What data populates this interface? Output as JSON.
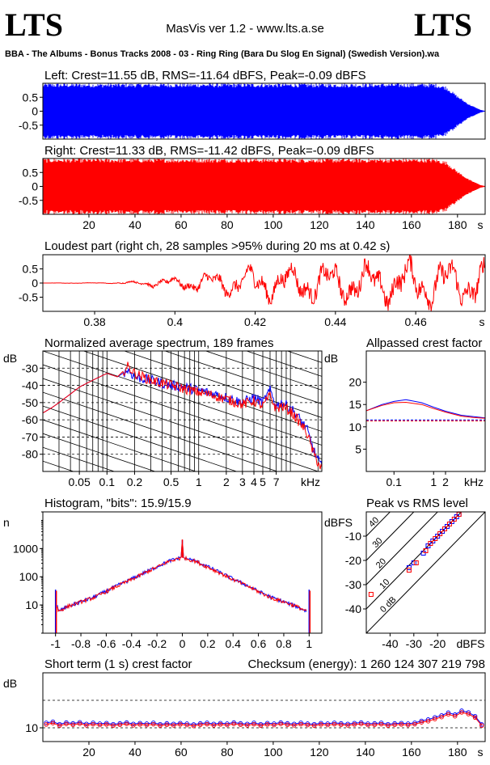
{
  "header": {
    "logo_left": "LTS",
    "logo_right": "LTS",
    "app_version": "MasVis ver 1.2 - www.lts.a.se",
    "file_name": "BBA - The Albums - Bonus Tracks 2008 - 03 - Ring Ring (Bara Du Slog En Signal) (Swedish Version).wa"
  },
  "colors": {
    "left": "#0000ff",
    "right": "#ff0000",
    "axis": "#000000",
    "background": "#ffffff"
  },
  "chart_data": [
    {
      "id": "left-waveform",
      "type": "area",
      "title": "Left: Crest=11.55 dB, RMS=-11.64 dBFS, Peak=-0.09 dBFS",
      "y_ticks": [
        "0.5",
        "0",
        "-0.5"
      ],
      "ylim": [
        -1,
        1
      ],
      "xlim": [
        0,
        192
      ],
      "x_ticks": [],
      "x_unit": "",
      "envelope": {
        "x": [
          0,
          5,
          10,
          60,
          120,
          170,
          175,
          180,
          185,
          190,
          192
        ],
        "peak": [
          1,
          1,
          1,
          1,
          1,
          1,
          0.9,
          0.55,
          0.25,
          0.05,
          0.01
        ]
      },
      "series": [
        {
          "name": "left",
          "color": "#0000ff"
        }
      ]
    },
    {
      "id": "right-waveform",
      "type": "area",
      "title": "Right: Crest=11.33 dB, RMS=-11.42 dBFS, Peak=-0.09 dBFS",
      "y_ticks": [
        "0.5",
        "0",
        "-0.5"
      ],
      "ylim": [
        -1,
        1
      ],
      "xlim": [
        0,
        192
      ],
      "x_ticks": [
        "20",
        "40",
        "60",
        "80",
        "100",
        "120",
        "140",
        "160",
        "180"
      ],
      "x_unit": "s",
      "envelope": {
        "x": [
          0,
          5,
          10,
          60,
          120,
          170,
          175,
          180,
          185,
          190,
          192
        ],
        "peak": [
          1,
          1,
          1,
          1,
          1,
          1,
          0.9,
          0.55,
          0.25,
          0.05,
          0.01
        ]
      },
      "series": [
        {
          "name": "right",
          "color": "#ff0000"
        }
      ]
    },
    {
      "id": "loudest-part",
      "type": "line",
      "title": "Loudest part (right ch, 28 samples >95% during 20 ms at 0.42 s)",
      "y_ticks": [
        "0.5",
        "0",
        "-0.5"
      ],
      "ylim": [
        -1,
        1
      ],
      "xlim": [
        0.3671,
        0.4773
      ],
      "x_ticks": [
        "0.38",
        "0.4",
        "0.42",
        "0.44",
        "0.46"
      ],
      "x_unit": "s",
      "amplitude_envelope": {
        "x": [
          0.367,
          0.385,
          0.39,
          0.4,
          0.41,
          0.42,
          0.44,
          0.46,
          0.477
        ],
        "amp": [
          0,
          0.02,
          0.08,
          0.25,
          0.45,
          0.7,
          0.8,
          0.95,
          0.9
        ]
      },
      "series": [
        {
          "name": "right",
          "color": "#ff0000"
        }
      ]
    },
    {
      "id": "average-spectrum",
      "type": "line",
      "title": "Normalized average spectrum, 189 frames",
      "ylabel": "dB",
      "y_ticks": [
        "-30",
        "-40",
        "-50",
        "-60",
        "-70",
        "-80"
      ],
      "ylim": [
        -90,
        -20
      ],
      "x_scale": "log",
      "xlim": [
        0.02,
        22
      ],
      "x_ticks": [
        "0.05",
        "0.1",
        "0.2",
        "0.5",
        "1",
        "2",
        "3",
        "4",
        "5",
        "7"
      ],
      "x_tick_values": [
        0.05,
        0.1,
        0.2,
        0.5,
        1,
        2,
        3,
        4,
        5,
        7
      ],
      "x_unit": "kHz",
      "x": [
        0.02,
        0.025,
        0.03,
        0.04,
        0.05,
        0.07,
        0.1,
        0.13,
        0.17,
        0.2,
        0.3,
        0.5,
        0.7,
        1,
        1.5,
        2,
        3,
        4,
        5,
        6,
        7,
        8,
        10,
        12,
        15,
        18,
        22
      ],
      "series": [
        {
          "name": "left",
          "color": "#0000ff",
          "values": [
            -56,
            -53,
            -50,
            -45,
            -41,
            -37,
            -33,
            -35,
            -31,
            -35,
            -37,
            -40,
            -41,
            -43,
            -45,
            -47,
            -50,
            -47,
            -50,
            -43,
            -52,
            -50,
            -53,
            -58,
            -65,
            -78,
            -88
          ]
        },
        {
          "name": "right",
          "color": "#ff0000",
          "values": [
            -56,
            -53,
            -50,
            -45,
            -41,
            -37,
            -33,
            -35,
            -29,
            -33,
            -37,
            -40,
            -42,
            -44,
            -46,
            -48,
            -51,
            -49,
            -52,
            -46,
            -54,
            -52,
            -55,
            -60,
            -67,
            -80,
            -89
          ]
        }
      ]
    },
    {
      "id": "allpassed-crest",
      "type": "line",
      "title": "Allpassed crest factor",
      "ylabel": "dB",
      "y_ticks": [
        "20",
        "15",
        "10",
        "5"
      ],
      "y_tick_values": [
        20,
        15,
        10,
        5
      ],
      "ylim": [
        0,
        27
      ],
      "x_scale": "log",
      "xlim": [
        0.02,
        20
      ],
      "x_ticks": [
        "0.1",
        "1",
        "2"
      ],
      "x_tick_values": [
        0.1,
        1,
        2
      ],
      "x_unit": "kHz",
      "x": [
        0.02,
        0.05,
        0.1,
        0.2,
        0.5,
        1,
        2,
        5,
        10,
        20
      ],
      "reference_crest": {
        "left": 11.55,
        "right": 11.33
      },
      "series": [
        {
          "name": "left",
          "color": "#0000ff",
          "values": [
            13.6,
            15.0,
            15.7,
            16.1,
            15.4,
            14.4,
            13.5,
            12.6,
            12.3,
            12.0
          ]
        },
        {
          "name": "right",
          "color": "#ff0000",
          "values": [
            13.6,
            14.8,
            15.4,
            15.5,
            15.0,
            14.1,
            13.3,
            12.4,
            12.1,
            11.9
          ]
        }
      ]
    },
    {
      "id": "histogram",
      "type": "line",
      "title": "Histogram, \"bits\": 15.9/15.9",
      "ylabel": "n",
      "y_scale": "log",
      "y_ticks": [
        "1000",
        "100",
        "10"
      ],
      "y_tick_values": [
        1000,
        100,
        10
      ],
      "ylim": [
        1,
        20000
      ],
      "xlim": [
        -1.1,
        1.1
      ],
      "x_ticks": [
        "-1",
        "-0.8",
        "-0.6",
        "-0.4",
        "-0.2",
        "0",
        "0.2",
        "0.4",
        "0.6",
        "0.8",
        "1"
      ],
      "x_tick_values": [
        -1,
        -0.8,
        -0.6,
        -0.4,
        -0.2,
        0,
        0.2,
        0.4,
        0.6,
        0.8,
        1
      ],
      "x": [
        -1,
        -0.98,
        -0.9,
        -0.8,
        -0.7,
        -0.6,
        -0.5,
        -0.4,
        -0.3,
        -0.2,
        -0.1,
        -0.01,
        0,
        0.01,
        0.1,
        0.2,
        0.3,
        0.4,
        0.5,
        0.6,
        0.7,
        0.8,
        0.9,
        0.98,
        1
      ],
      "series": [
        {
          "name": "left",
          "color": "#0000ff",
          "values": [
            35,
            6,
            9,
            13,
            19,
            31,
            52,
            84,
            140,
            230,
            370,
            480,
            2000,
            480,
            370,
            230,
            140,
            84,
            52,
            31,
            19,
            13,
            9,
            6,
            35
          ]
        },
        {
          "name": "right",
          "color": "#ff0000",
          "values": [
            32,
            6,
            9,
            13,
            18,
            30,
            50,
            80,
            135,
            220,
            360,
            470,
            2100,
            470,
            360,
            220,
            135,
            80,
            50,
            30,
            18,
            13,
            9,
            6,
            32
          ]
        }
      ]
    },
    {
      "id": "peak-vs-rms",
      "type": "scatter",
      "title": "Peak vs RMS level",
      "ylabel": "dBFS",
      "xlabel": "dBFS",
      "y_ticks": [
        "-10",
        "-20",
        "-30",
        "-40"
      ],
      "y_tick_values": [
        -10,
        -20,
        -30,
        -40
      ],
      "x_ticks": [
        "-40",
        "-30",
        "-20"
      ],
      "x_tick_values": [
        -40,
        -30,
        -20
      ],
      "xlim": [
        -50,
        0
      ],
      "ylim": [
        -50,
        0
      ],
      "crest_lines": [
        "0 dB",
        "10",
        "20",
        "30",
        "40"
      ],
      "crest_line_values": [
        0,
        10,
        20,
        30,
        40
      ],
      "series": [
        {
          "name": "left",
          "color": "#0000ff",
          "points": [
            [
              -32,
              -23
            ],
            [
              -30,
              -21
            ],
            [
              -26,
              -17
            ],
            [
              -24,
              -14
            ],
            [
              -22,
              -12
            ],
            [
              -20,
              -10
            ],
            [
              -18,
              -8
            ],
            [
              -16,
              -6
            ],
            [
              -14,
              -4
            ],
            [
              -12,
              -2
            ],
            [
              -11,
              -1
            ]
          ]
        },
        {
          "name": "right",
          "color": "#ff0000",
          "points": [
            [
              -48,
              -34
            ],
            [
              -32,
              -24
            ],
            [
              -29,
              -21
            ],
            [
              -25,
              -16
            ],
            [
              -23,
              -13
            ],
            [
              -21,
              -11
            ],
            [
              -19,
              -9
            ],
            [
              -17,
              -7
            ],
            [
              -15,
              -5
            ],
            [
              -13,
              -3
            ],
            [
              -11,
              -1
            ]
          ]
        }
      ]
    },
    {
      "id": "short-term-crest",
      "type": "line",
      "title": "Short term (1 s) crest factor",
      "annotation": "Checksum (energy):  1 260 124 307 219 798",
      "ylabel": "dB",
      "y_ticks": [
        "10"
      ],
      "y_tick_values": [
        10
      ],
      "ylim": [
        5,
        30
      ],
      "reference_lines": [
        10,
        20
      ],
      "xlim": [
        0,
        192
      ],
      "x_ticks": [
        "20",
        "40",
        "60",
        "80",
        "100",
        "120",
        "140",
        "160",
        "180"
      ],
      "x_tick_values": [
        20,
        40,
        60,
        80,
        100,
        120,
        140,
        160,
        180
      ],
      "x_unit": "s",
      "series": [
        {
          "name": "left",
          "color": "#0000ff",
          "values": [
            11.8,
            12.2,
            11.3,
            11.9,
            11.6,
            12.0,
            11.4,
            11.8,
            11.5,
            11.7,
            11.3,
            11.6,
            11.9,
            11.4,
            11.7,
            11.5,
            11.8,
            11.3,
            11.6,
            11.4,
            11.7,
            11.5,
            11.2,
            11.6,
            11.8,
            11.4,
            11.7,
            11.5,
            11.9,
            11.6,
            11.4,
            11.8,
            11.3,
            11.7,
            11.5,
            11.9,
            11.6,
            11.4,
            11.8,
            11.5,
            11.3,
            11.7,
            11.5,
            11.8,
            11.6,
            11.4,
            11.7,
            11.9,
            11.5,
            11.6,
            11.8,
            11.3,
            11.6,
            11.7,
            11.5,
            11.8,
            12.5,
            13.0,
            13.8,
            14.5,
            15.5,
            14.8,
            16.2,
            15.6,
            14.2,
            11.2
          ]
        },
        {
          "name": "right",
          "color": "#ff0000",
          "values": [
            11.2,
            11.7,
            10.8,
            11.4,
            11.1,
            11.5,
            10.9,
            11.3,
            11.0,
            11.2,
            10.8,
            11.1,
            11.4,
            10.9,
            11.2,
            11.0,
            11.3,
            10.8,
            11.1,
            10.9,
            11.2,
            11.0,
            10.7,
            11.1,
            11.3,
            10.9,
            11.2,
            11.0,
            11.4,
            11.1,
            10.9,
            11.3,
            10.8,
            11.2,
            11.0,
            11.4,
            11.1,
            10.9,
            11.3,
            11.0,
            10.8,
            11.2,
            11.0,
            11.3,
            11.1,
            10.9,
            11.2,
            11.4,
            11.0,
            11.1,
            11.3,
            10.8,
            11.1,
            11.2,
            11.0,
            11.3,
            12.0,
            12.4,
            13.2,
            13.9,
            14.9,
            14.2,
            15.6,
            15.0,
            13.7,
            10.8
          ]
        }
      ]
    }
  ]
}
